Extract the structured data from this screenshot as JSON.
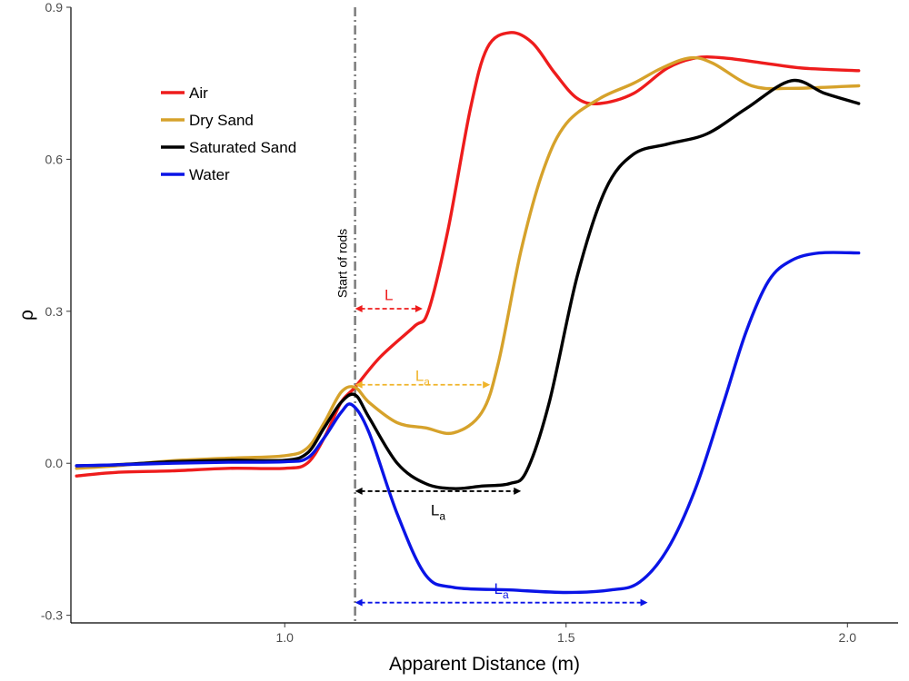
{
  "chart_data": {
    "type": "line",
    "xlabel": "Apparent Distance (m)",
    "ylabel": "ρ",
    "xlim": [
      0.62,
      2.09
    ],
    "ylim": [
      -0.315,
      0.9
    ],
    "xticks": [
      1.0,
      1.5,
      2.0
    ],
    "xtick_labels": [
      "1.0",
      "1.5",
      "2.0"
    ],
    "yticks": [
      -0.3,
      0.0,
      0.3,
      0.6,
      0.9
    ],
    "ytick_labels": [
      "-0.3",
      "0.0",
      "0.3",
      "0.6",
      "0.9"
    ],
    "grid": false,
    "legend_position": "top-left",
    "series": [
      {
        "name": "Air",
        "color": "#ee1c1c",
        "x": [
          0.63,
          0.7,
          0.8,
          0.9,
          1.0,
          1.04,
          1.07,
          1.1,
          1.125,
          1.17,
          1.23,
          1.255,
          1.29,
          1.33,
          1.36,
          1.4,
          1.44,
          1.48,
          1.52,
          1.56,
          1.62,
          1.68,
          1.73,
          1.78,
          1.85,
          1.92,
          2.02
        ],
        "y": [
          -0.025,
          -0.018,
          -0.015,
          -0.01,
          -0.01,
          0.0,
          0.05,
          0.12,
          0.15,
          0.21,
          0.27,
          0.3,
          0.46,
          0.7,
          0.82,
          0.85,
          0.83,
          0.77,
          0.72,
          0.71,
          0.73,
          0.78,
          0.8,
          0.8,
          0.79,
          0.78,
          0.775
        ]
      },
      {
        "name": "Dry Sand",
        "color": "#d6a22b",
        "x": [
          0.63,
          0.7,
          0.8,
          0.9,
          1.0,
          1.04,
          1.07,
          1.1,
          1.125,
          1.15,
          1.2,
          1.25,
          1.3,
          1.35,
          1.38,
          1.42,
          1.46,
          1.5,
          1.56,
          1.62,
          1.67,
          1.72,
          1.76,
          1.83,
          1.9,
          2.02
        ],
        "y": [
          -0.01,
          -0.005,
          0.005,
          0.01,
          0.015,
          0.03,
          0.08,
          0.14,
          0.15,
          0.12,
          0.08,
          0.07,
          0.06,
          0.1,
          0.2,
          0.42,
          0.58,
          0.67,
          0.72,
          0.75,
          0.78,
          0.8,
          0.79,
          0.745,
          0.74,
          0.745
        ]
      },
      {
        "name": "Saturated Sand",
        "color": "#000000",
        "x": [
          0.63,
          0.7,
          0.8,
          0.9,
          1.0,
          1.04,
          1.07,
          1.1,
          1.125,
          1.15,
          1.2,
          1.25,
          1.3,
          1.35,
          1.4,
          1.43,
          1.47,
          1.52,
          1.57,
          1.62,
          1.68,
          1.75,
          1.82,
          1.9,
          1.96,
          2.02
        ],
        "y": [
          -0.005,
          -0.003,
          0.003,
          0.006,
          0.006,
          0.02,
          0.07,
          0.12,
          0.135,
          0.09,
          0.0,
          -0.04,
          -0.05,
          -0.045,
          -0.04,
          -0.015,
          0.12,
          0.37,
          0.54,
          0.61,
          0.63,
          0.65,
          0.7,
          0.755,
          0.73,
          0.71
        ]
      },
      {
        "name": "Water",
        "color": "#0a14e6",
        "x": [
          0.63,
          0.7,
          0.8,
          0.9,
          1.0,
          1.04,
          1.07,
          1.1,
          1.12,
          1.15,
          1.2,
          1.25,
          1.3,
          1.4,
          1.5,
          1.58,
          1.63,
          1.68,
          1.73,
          1.78,
          1.82,
          1.86,
          1.9,
          1.95,
          2.02
        ],
        "y": [
          -0.005,
          -0.003,
          0.0,
          0.002,
          0.003,
          0.01,
          0.05,
          0.1,
          0.115,
          0.06,
          -0.1,
          -0.22,
          -0.245,
          -0.25,
          -0.255,
          -0.25,
          -0.235,
          -0.17,
          -0.05,
          0.12,
          0.26,
          0.36,
          0.4,
          0.415,
          0.415
        ]
      }
    ],
    "annotations": {
      "start_line": {
        "x": 1.125,
        "label": "Start of rods",
        "color": "#7f7f7f"
      },
      "arrows": [
        {
          "label": "L",
          "subscript": "",
          "color": "#ee1c1c",
          "x0": 1.125,
          "x1": 1.245,
          "y": 0.305,
          "label_y": 0.335
        },
        {
          "label": "L",
          "subscript": "a",
          "color": "#f0b429",
          "x0": 1.125,
          "x1": 1.365,
          "y": 0.155,
          "label_y": 0.175
        },
        {
          "label": "L",
          "subscript": "a",
          "color": "#000000",
          "x0": 1.125,
          "x1": 1.42,
          "y": -0.055,
          "label_y": -0.09
        },
        {
          "label": "L",
          "subscript": "a",
          "color": "#0a14e6",
          "x0": 1.125,
          "x1": 1.645,
          "y": -0.275,
          "label_y": -0.245
        }
      ]
    }
  }
}
